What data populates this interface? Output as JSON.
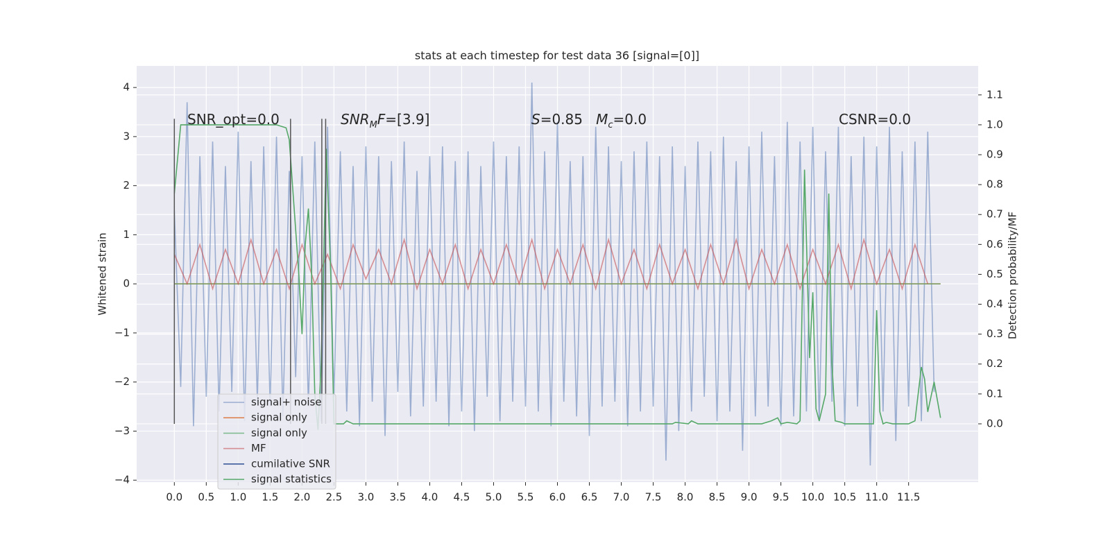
{
  "chart_data": {
    "type": "line",
    "title": "stats at each timestep for test data 36 [signal=[0]]",
    "ylabel": "Whitened strain",
    "y2label": "Detection probability/MF",
    "xlim": [
      -0.59,
      12.59
    ],
    "ylim": [
      -4.04,
      4.44
    ],
    "y2lim": [
      -0.195,
      1.197
    ],
    "grid": true,
    "legend": "lower left",
    "xticks": [
      {
        "value": 0,
        "label": "0.0"
      },
      {
        "value": 0.5,
        "label": "0.5"
      },
      {
        "value": 1,
        "label": "1.0"
      },
      {
        "value": 1.5,
        "label": "1.5"
      },
      {
        "value": 2,
        "label": "2.0"
      },
      {
        "value": 2.5,
        "label": "2.5"
      },
      {
        "value": 3,
        "label": "3.0"
      },
      {
        "value": 3.5,
        "label": "3.5"
      },
      {
        "value": 4,
        "label": "4.0"
      },
      {
        "value": 4.5,
        "label": "4.5"
      },
      {
        "value": 5,
        "label": "5.0"
      },
      {
        "value": 5.5,
        "label": "5.5"
      },
      {
        "value": 6,
        "label": "6.0"
      },
      {
        "value": 6.5,
        "label": "6.5"
      },
      {
        "value": 7,
        "label": "7.0"
      },
      {
        "value": 7.5,
        "label": "7.5"
      },
      {
        "value": 8,
        "label": "8.0"
      },
      {
        "value": 8.5,
        "label": "8.5"
      },
      {
        "value": 9,
        "label": "9.0"
      },
      {
        "value": 9.5,
        "label": "9.5"
      },
      {
        "value": 10,
        "label": "10.0"
      },
      {
        "value": 10.5,
        "label": "10.5"
      },
      {
        "value": 11,
        "label": "11.0"
      },
      {
        "value": 11.5,
        "label": "11.5"
      }
    ],
    "yticks": [
      {
        "value": -4,
        "label": "−4"
      },
      {
        "value": -3,
        "label": "−3"
      },
      {
        "value": -2,
        "label": "−2"
      },
      {
        "value": -1,
        "label": "−1"
      },
      0,
      1,
      2,
      3,
      4
    ],
    "y2ticks": [
      {
        "value": 0,
        "label": "0.0"
      },
      {
        "value": 0.1,
        "label": "0.1"
      },
      {
        "value": 0.2,
        "label": "0.2"
      },
      {
        "value": 0.3,
        "label": "0.3"
      },
      {
        "value": 0.4,
        "label": "0.4"
      },
      {
        "value": 0.5,
        "label": "0.5"
      },
      {
        "value": 0.6,
        "label": "0.6"
      },
      {
        "value": 0.7,
        "label": "0.7"
      },
      {
        "value": 0.8,
        "label": "0.8"
      },
      {
        "value": 0.9,
        "label": "0.9"
      },
      {
        "value": 1,
        "label": "1.0"
      },
      {
        "value": 1.1,
        "label": "1.1"
      }
    ],
    "annotations": [
      [
        {
          "text": "SNR_opt=0.0"
        }
      ],
      [
        {
          "text": "SNR",
          "style": "italic"
        },
        {
          "text": "M",
          "style": "sub"
        },
        {
          "text": "F",
          "style": "italic"
        },
        {
          "text": "=[3.9]"
        }
      ],
      [
        {
          "text": "S",
          "style": "italic"
        },
        {
          "text": "=0.85   "
        },
        {
          "text": "M",
          "style": "italic"
        },
        {
          "text": "c",
          "style": "sub"
        },
        {
          "text": "=0.0"
        }
      ],
      [
        {
          "text": "CSNR=0.0"
        }
      ]
    ],
    "vlines": {
      "x": [
        0,
        1.82,
        2.31,
        2.37
      ],
      "y2": [
        0,
        1.02
      ],
      "color": "#555555"
    },
    "series": [
      {
        "name": "signal+ noise",
        "color": "#4c72b0",
        "alpha": 0.5,
        "x": [
          0,
          0.1,
          0.2,
          0.3,
          0.4,
          0.5,
          0.6,
          0.7,
          0.8,
          0.9,
          1,
          1.1,
          1.2,
          1.3,
          1.4,
          1.5,
          1.6,
          1.7,
          1.8,
          1.9,
          2,
          2.1,
          2.2,
          2.3,
          2.4,
          2.5,
          2.6,
          2.7,
          2.8,
          2.9,
          3,
          3.1,
          3.2,
          3.3,
          3.4,
          3.5,
          3.6,
          3.7,
          3.8,
          3.9,
          4,
          4.1,
          4.2,
          4.3,
          4.4,
          4.5,
          4.6,
          4.7,
          4.8,
          4.9,
          5,
          5.1,
          5.2,
          5.3,
          5.4,
          5.5,
          5.6,
          5.7,
          5.8,
          5.9,
          6,
          6.1,
          6.2,
          6.3,
          6.4,
          6.5,
          6.6,
          6.7,
          6.8,
          6.9,
          7,
          7.1,
          7.2,
          7.3,
          7.4,
          7.5,
          7.6,
          7.7,
          7.8,
          7.9,
          8,
          8.1,
          8.2,
          8.3,
          8.4,
          8.5,
          8.6,
          8.7,
          8.8,
          8.9,
          9,
          9.1,
          9.2,
          9.3,
          9.4,
          9.5,
          9.6,
          9.7,
          9.8,
          9.9,
          10,
          10.1,
          10.2,
          10.3,
          10.4,
          10.5,
          10.6,
          10.7,
          10.8,
          10.9,
          11,
          11.1,
          11.2,
          11.3,
          11.4,
          11.5,
          11.6,
          11.7,
          11.8,
          11.9
        ],
        "values": [
          1.5,
          -2.1,
          3.7,
          -2.9,
          2.6,
          -2.3,
          2.9,
          -2.6,
          2.4,
          -2.2,
          3.1,
          -2.8,
          2.5,
          -2.4,
          2.8,
          -2.5,
          3.0,
          -2.7,
          2.3,
          -1.9,
          2.6,
          -2.5,
          2.9,
          -2.8,
          3.2,
          -2.3,
          2.7,
          -2.6,
          2.4,
          -2.9,
          2.8,
          -2.4,
          2.6,
          -3.1,
          2.5,
          -2.2,
          2.9,
          -2.7,
          2.3,
          -2.5,
          2.6,
          -2.4,
          2.8,
          -2.9,
          2.5,
          -2.6,
          2.7,
          -3.0,
          2.4,
          -2.3,
          2.9,
          -2.8,
          2.6,
          -2.4,
          2.8,
          -2.5,
          4.1,
          -2.6,
          2.7,
          -2.9,
          3.3,
          -2.4,
          2.5,
          -2.7,
          2.6,
          -3.1,
          3.2,
          -2.5,
          2.8,
          -2.4,
          2.5,
          -2.9,
          2.7,
          -2.6,
          2.9,
          -2.5,
          2.6,
          -3.6,
          2.8,
          -3.0,
          2.4,
          -2.6,
          2.9,
          -2.3,
          2.7,
          -2.8,
          3.0,
          -2.6,
          2.5,
          -3.4,
          2.8,
          -2.7,
          3.1,
          -2.5,
          2.6,
          -2.9,
          3.3,
          -2.7,
          2.9,
          -2.6,
          3.2,
          -2.8,
          2.7,
          -2.4,
          3.2,
          -2.9,
          2.6,
          -2.5,
          3.0,
          -3.7,
          2.8,
          -2.6,
          3.2,
          -3.2,
          2.7,
          -2.5,
          2.9,
          -2.8,
          3.1,
          -2.2
        ]
      },
      {
        "name": "signal only",
        "color": "#dd8452",
        "alpha": 1,
        "x": [
          0,
          12
        ],
        "values": [
          0,
          0
        ]
      },
      {
        "name": "signal only",
        "color": "#55a868",
        "alpha": 0.7,
        "x": [
          0,
          12
        ],
        "values": [
          0,
          0
        ]
      },
      {
        "name": "MF",
        "color": "#c44e52",
        "alpha": 0.6,
        "x": [
          0,
          0.2,
          0.4,
          0.6,
          0.8,
          1,
          1.2,
          1.4,
          1.6,
          1.8,
          2,
          2.2,
          2.4,
          2.6,
          2.8,
          3,
          3.2,
          3.4,
          3.6,
          3.8,
          4,
          4.2,
          4.4,
          4.6,
          4.8,
          5,
          5.2,
          5.4,
          5.6,
          5.8,
          6,
          6.2,
          6.4,
          6.6,
          6.8,
          7,
          7.2,
          7.4,
          7.6,
          7.8,
          8,
          8.2,
          8.4,
          8.6,
          8.8,
          9,
          9.2,
          9.4,
          9.6,
          9.8,
          10,
          10.2,
          10.4,
          10.6,
          10.8,
          11,
          11.2,
          11.4,
          11.6,
          11.8
        ],
        "values": [
          0.6,
          0.0,
          0.8,
          -0.1,
          0.7,
          0.0,
          0.9,
          0.0,
          0.7,
          -0.1,
          0.8,
          0.0,
          0.6,
          -0.1,
          0.8,
          0.1,
          0.7,
          0.0,
          0.9,
          -0.1,
          0.7,
          0.0,
          0.8,
          -0.1,
          0.7,
          0.0,
          0.8,
          0.0,
          0.9,
          -0.1,
          0.7,
          0.0,
          0.8,
          -0.1,
          0.9,
          0.0,
          0.7,
          -0.1,
          0.8,
          0.0,
          0.7,
          -0.1,
          0.8,
          0.0,
          0.9,
          -0.1,
          0.7,
          0.0,
          0.8,
          -0.1,
          0.7,
          0.0,
          0.8,
          -0.1,
          0.9,
          0.0,
          0.7,
          -0.1,
          0.8,
          0.0
        ]
      },
      {
        "name": "cumilative SNR",
        "color": "#3a5a9a",
        "alpha": 1,
        "x": [],
        "values": []
      },
      {
        "name": "signal statistics",
        "color": "#55a868",
        "alpha": 1,
        "axis": "y2",
        "x": [
          0,
          0.1,
          1.6,
          1.75,
          1.8,
          1.85,
          1.95,
          2.0,
          2.05,
          2.1,
          2.15,
          2.2,
          2.25,
          2.3,
          2.38,
          2.45,
          2.5,
          2.65,
          2.7,
          2.8,
          7.8,
          7.85,
          8.05,
          8.1,
          8.2,
          9.2,
          9.35,
          9.45,
          9.5,
          9.6,
          9.75,
          9.8,
          9.87,
          9.95,
          10.0,
          10.05,
          10.1,
          10.2,
          10.25,
          10.3,
          10.35,
          10.45,
          10.5,
          10.95,
          11.0,
          11.05,
          11.1,
          11.15,
          11.25,
          11.5,
          11.6,
          11.7,
          11.75,
          11.8,
          11.9,
          12.0
        ],
        "values": [
          0.77,
          1.0,
          1.0,
          0.99,
          0.95,
          0.8,
          0.5,
          0.3,
          0.6,
          0.72,
          0.5,
          0.1,
          -0.02,
          0.2,
          0.92,
          0.5,
          0.0,
          0.0,
          0.01,
          0.0,
          0.0,
          0.005,
          0.0,
          0.01,
          0.0,
          0.0,
          0.01,
          0.02,
          0.0,
          0.005,
          0.0,
          0.01,
          0.85,
          0.22,
          0.44,
          0.05,
          0.01,
          0.1,
          0.77,
          0.2,
          0.01,
          0.005,
          0.0,
          0.0,
          0.38,
          0.04,
          0.0,
          0.005,
          0.0,
          0.0,
          0.01,
          0.19,
          0.15,
          0.04,
          0.14,
          0.02
        ]
      }
    ]
  }
}
